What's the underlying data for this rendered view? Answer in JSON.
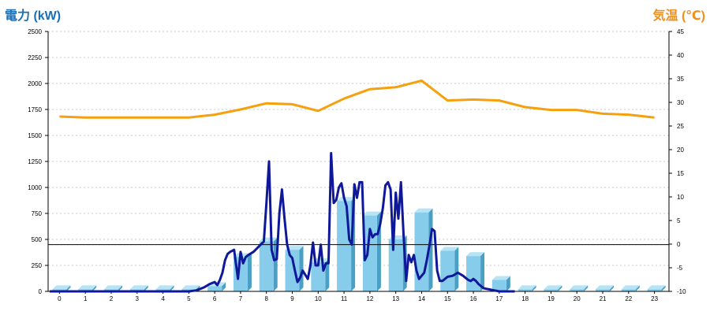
{
  "chart_data": {
    "type": "bar+line",
    "left_axis_title": "電力 (kW)",
    "right_axis_title": "気温 (℃)",
    "left_ylim": [
      0,
      2500
    ],
    "left_ticks": [
      0,
      250,
      500,
      750,
      1000,
      1250,
      1500,
      1750,
      2000,
      2250,
      2500
    ],
    "right_ylim": [
      -10,
      45
    ],
    "right_ticks": [
      -10,
      -5,
      0,
      5,
      10,
      15,
      20,
      25,
      30,
      35,
      40,
      45
    ],
    "categories": [
      "0",
      "1",
      "2",
      "3",
      "4",
      "5",
      "6",
      "7",
      "8",
      "9",
      "10",
      "11",
      "12",
      "13",
      "14",
      "15",
      "16",
      "17",
      "18",
      "19",
      "20",
      "21",
      "22",
      "23"
    ],
    "reference_line_kw": 450,
    "grid": true,
    "colors": {
      "bar": "#87cceb",
      "bar_side": "#4a9fc4",
      "bar_top": "#b7e4f5",
      "power_line": "#10189a",
      "temp_line": "#f5a00f",
      "left_title": "#1b6fb5",
      "right_title": "#f0901a"
    },
    "series": [
      {
        "kind": "bar",
        "axis": "left",
        "values": [
          20,
          20,
          20,
          20,
          20,
          20,
          50,
          330,
          480,
          400,
          280,
          870,
          730,
          500,
          760,
          390,
          340,
          110,
          20,
          20,
          20,
          20,
          20,
          20
        ]
      },
      {
        "kind": "line",
        "axis": "left",
        "x": [
          5.0,
          5.3,
          5.6,
          5.8,
          6.0,
          6.1,
          6.2,
          6.3,
          6.4,
          6.5,
          6.6,
          6.75,
          6.9,
          7.0,
          7.1,
          7.2,
          7.3,
          7.5,
          7.7,
          7.9,
          8.0,
          8.1,
          8.2,
          8.3,
          8.4,
          8.5,
          8.6,
          8.7,
          8.8,
          8.9,
          9.0,
          9.1,
          9.2,
          9.3,
          9.4,
          9.5,
          9.6,
          9.7,
          9.8,
          9.9,
          10.0,
          10.1,
          10.2,
          10.3,
          10.4,
          10.5,
          10.6,
          10.7,
          10.8,
          10.9,
          11.0,
          11.1,
          11.2,
          11.3,
          11.4,
          11.5,
          11.6,
          11.7,
          11.8,
          11.9,
          12.0,
          12.1,
          12.2,
          12.3,
          12.4,
          12.5,
          12.6,
          12.7,
          12.8,
          12.9,
          13.0,
          13.1,
          13.2,
          13.3,
          13.4,
          13.5,
          13.6,
          13.7,
          13.8,
          13.9,
          14.0,
          14.1,
          14.2,
          14.3,
          14.4,
          14.5,
          14.6,
          14.7,
          14.8,
          14.9,
          15.0,
          15.2,
          15.4,
          15.6,
          15.8,
          15.9,
          16.0,
          16.1,
          16.2,
          16.3,
          16.4,
          16.6,
          16.8,
          17.0,
          17.2,
          17.4,
          17.5,
          17.6
        ],
        "values": [
          0,
          10,
          40,
          70,
          90,
          60,
          110,
          180,
          300,
          360,
          380,
          400,
          120,
          380,
          270,
          330,
          350,
          380,
          430,
          480,
          850,
          1250,
          400,
          300,
          310,
          750,
          980,
          700,
          450,
          350,
          320,
          200,
          90,
          130,
          200,
          160,
          120,
          250,
          470,
          250,
          250,
          450,
          200,
          270,
          270,
          1330,
          850,
          880,
          1000,
          1040,
          900,
          820,
          500,
          450,
          1030,
          900,
          1050,
          1050,
          300,
          350,
          600,
          520,
          550,
          550,
          650,
          800,
          1020,
          1050,
          980,
          400,
          950,
          700,
          1050,
          550,
          100,
          350,
          280,
          350,
          200,
          120,
          150,
          180,
          300,
          440,
          600,
          580,
          200,
          100,
          100,
          120,
          140,
          150,
          180,
          150,
          110,
          100,
          120,
          100,
          70,
          50,
          30,
          20,
          10,
          0,
          0,
          0,
          0,
          0
        ]
      },
      {
        "kind": "line",
        "axis": "right",
        "x": [
          0,
          1,
          2,
          3,
          4,
          5,
          6,
          7,
          8,
          9,
          10,
          11,
          12,
          13,
          14,
          15,
          16,
          17,
          18,
          19,
          20,
          21,
          22,
          23
        ],
        "values": [
          27.0,
          26.8,
          26.8,
          26.8,
          26.8,
          26.8,
          27.4,
          28.5,
          29.8,
          29.6,
          28.2,
          30.8,
          32.8,
          33.2,
          34.6,
          30.4,
          30.6,
          30.4,
          29.0,
          28.4,
          28.4,
          27.6,
          27.4,
          26.8
        ]
      }
    ]
  }
}
